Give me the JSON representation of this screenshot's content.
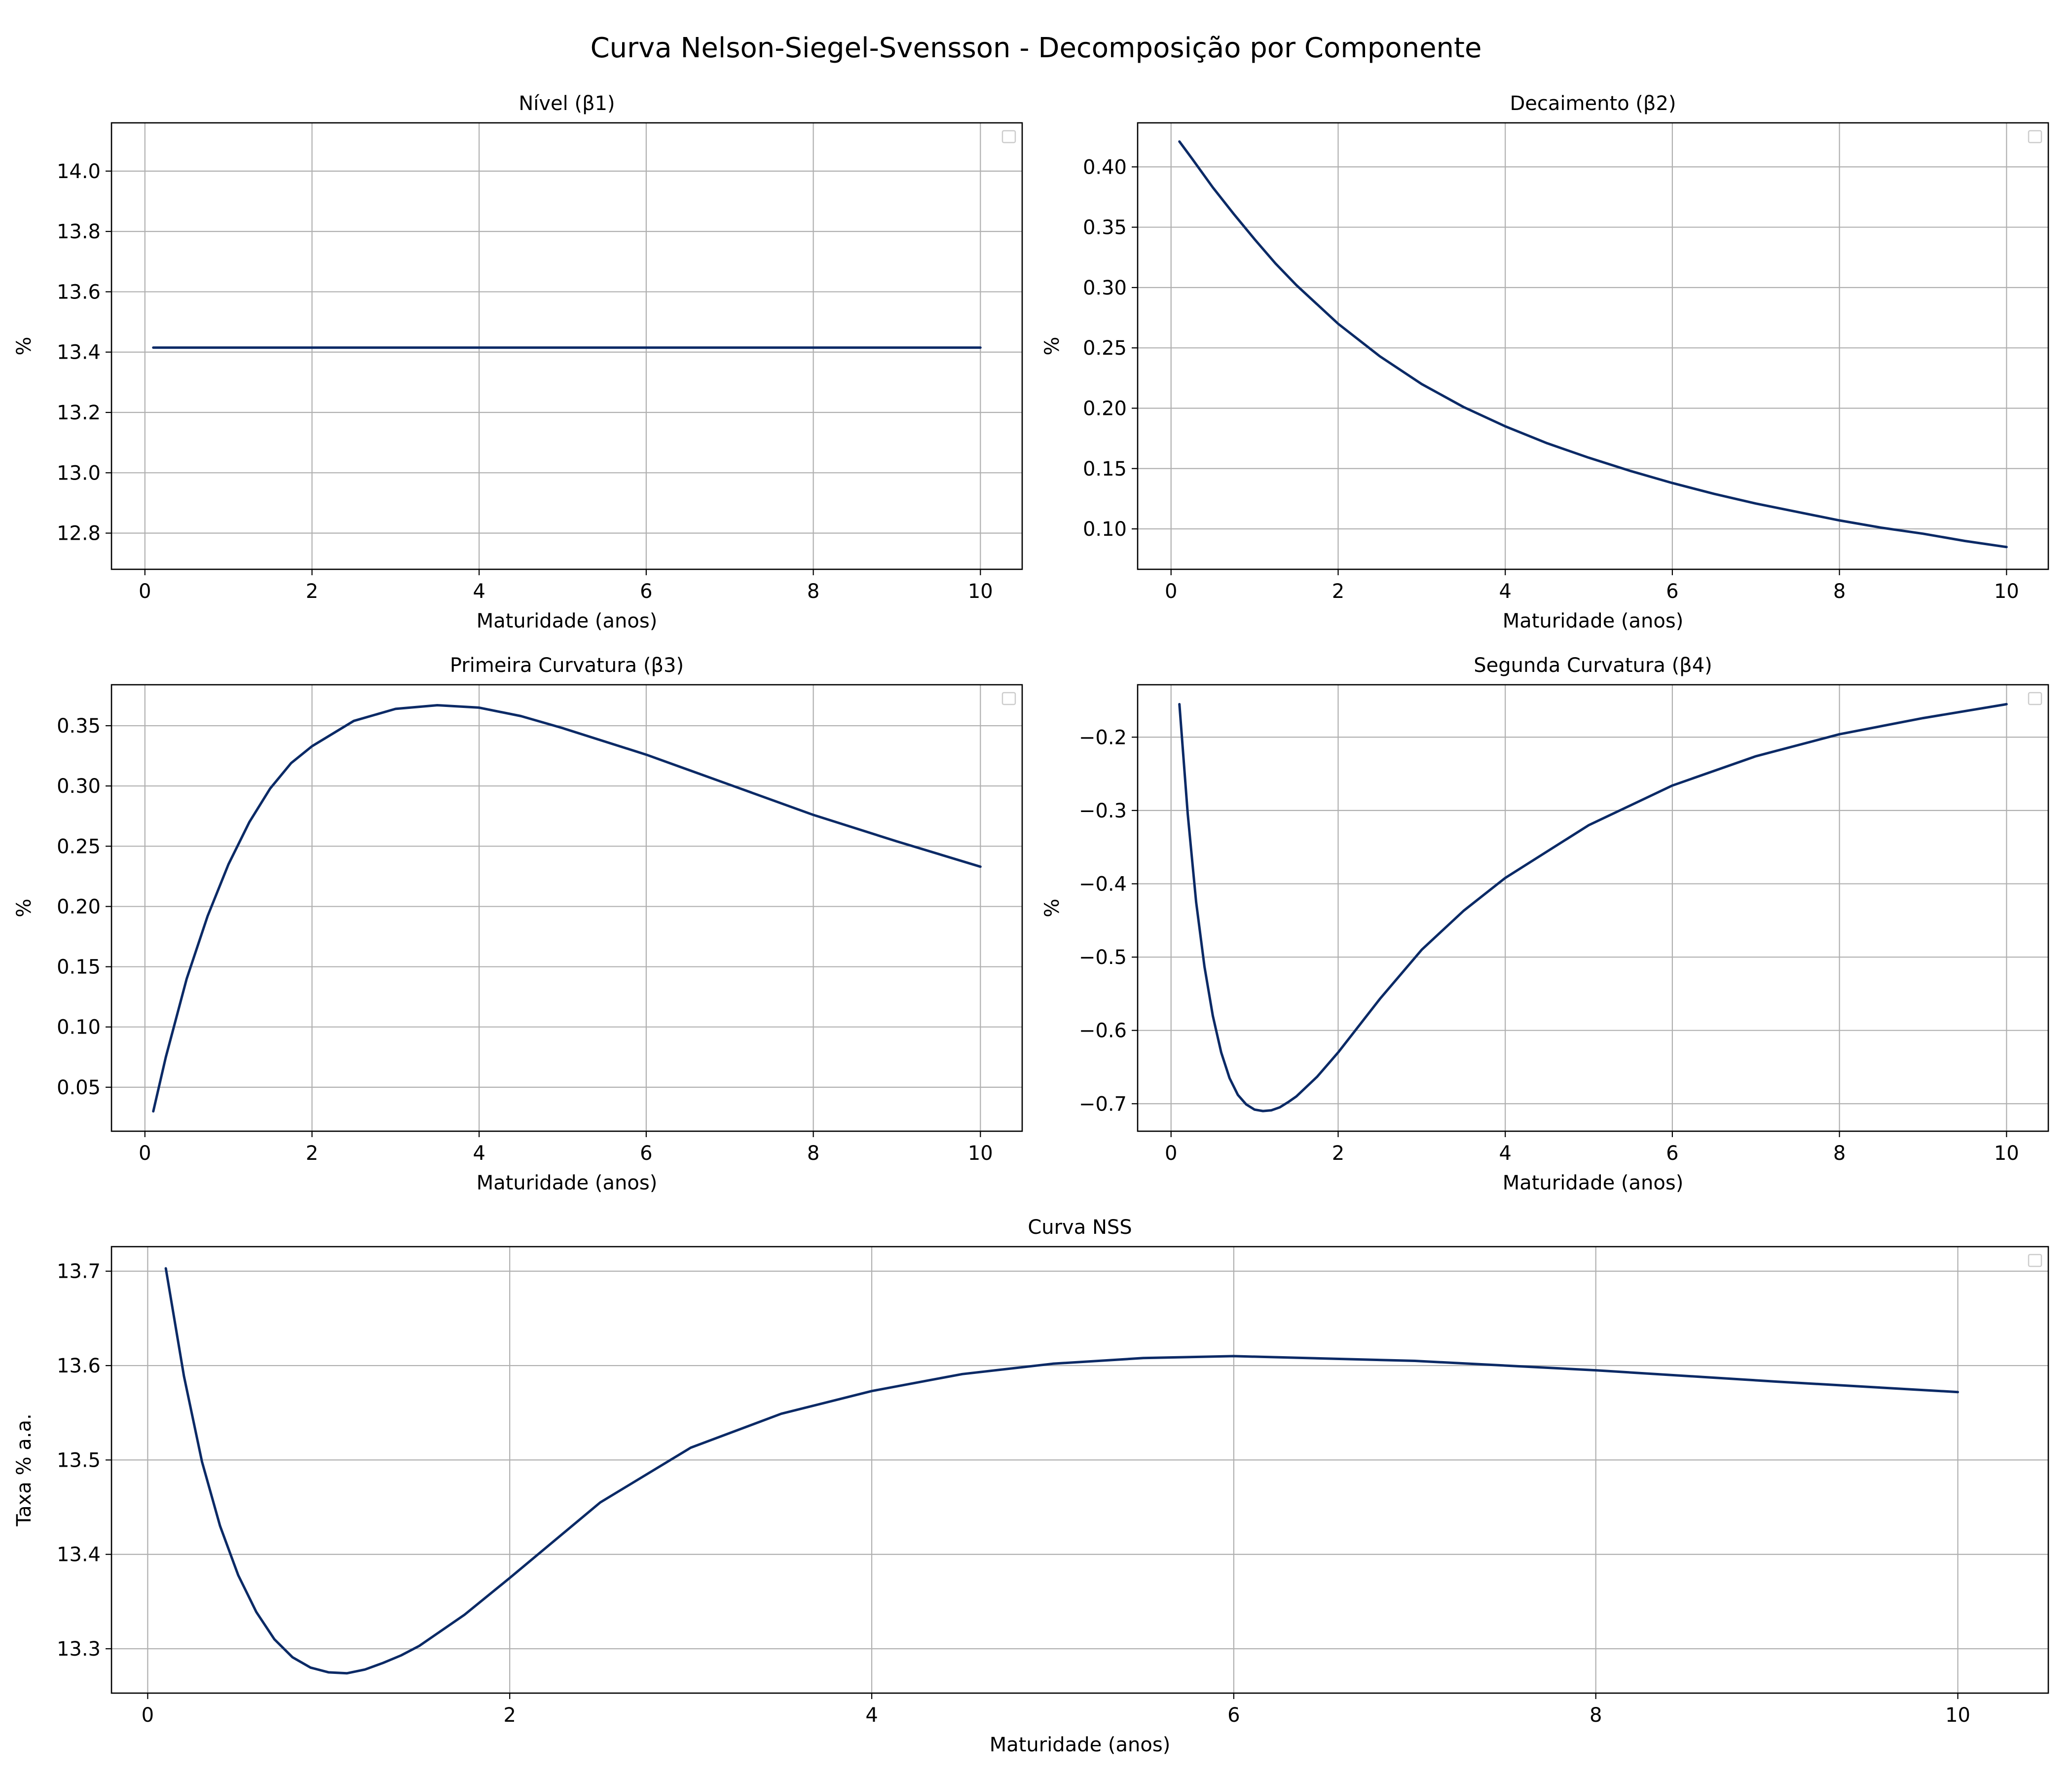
{
  "figure_title": "Curva Nelson-Siegel-Svensson - Decomposição por Componente",
  "line_color": "#0b2a66",
  "chart_data": [
    {
      "type": "line",
      "title": "Nível (β1)",
      "xlabel": "Maturidade (anos)",
      "ylabel": "%",
      "xlim": [
        -0.4,
        10.5
      ],
      "ylim": [
        12.68,
        14.16
      ],
      "xticks": [
        0,
        2,
        4,
        6,
        8,
        10
      ],
      "yticks": [
        12.8,
        13.0,
        13.2,
        13.4,
        13.6,
        13.8,
        14.0
      ],
      "ytick_labels": [
        "12.8",
        "13.0",
        "13.2",
        "13.4",
        "13.6",
        "13.8",
        "14.0"
      ],
      "grid": true,
      "legend": "top-right (empty)",
      "series": [
        {
          "x": [
            0.1,
            2,
            4,
            6,
            8,
            10
          ],
          "y": [
            13.415,
            13.415,
            13.415,
            13.415,
            13.415,
            13.415
          ]
        }
      ]
    },
    {
      "type": "line",
      "title": "Decaimento (β2)",
      "xlabel": "Maturidade (anos)",
      "ylabel": "%",
      "xlim": [
        -0.4,
        10.5
      ],
      "ylim": [
        0.0665,
        0.4365
      ],
      "xticks": [
        0,
        2,
        4,
        6,
        8,
        10
      ],
      "yticks": [
        0.1,
        0.15,
        0.2,
        0.25,
        0.3,
        0.35,
        0.4
      ],
      "ytick_labels": [
        "0.10",
        "0.15",
        "0.20",
        "0.25",
        "0.30",
        "0.35",
        "0.40"
      ],
      "grid": true,
      "legend": "top-right (empty)",
      "series": [
        {
          "x": [
            0.1,
            0.25,
            0.5,
            0.75,
            1,
            1.25,
            1.5,
            1.75,
            2,
            2.5,
            3,
            3.5,
            4,
            4.5,
            5,
            5.5,
            6,
            6.5,
            7,
            7.5,
            8,
            8.5,
            9,
            9.5,
            10
          ],
          "y": [
            0.421,
            0.407,
            0.383,
            0.361,
            0.34,
            0.32,
            0.302,
            0.286,
            0.27,
            0.243,
            0.22,
            0.201,
            0.185,
            0.171,
            0.159,
            0.148,
            0.138,
            0.129,
            0.121,
            0.114,
            0.107,
            0.101,
            0.096,
            0.09,
            0.085
          ]
        }
      ]
    },
    {
      "type": "line",
      "title": "Primeira Curvatura (β3)",
      "xlabel": "Maturidade (anos)",
      "ylabel": "%",
      "xlim": [
        -0.4,
        10.5
      ],
      "ylim": [
        0.0135,
        0.384
      ],
      "xticks": [
        0,
        2,
        4,
        6,
        8,
        10
      ],
      "yticks": [
        0.05,
        0.1,
        0.15,
        0.2,
        0.25,
        0.3,
        0.35
      ],
      "ytick_labels": [
        "0.05",
        "0.10",
        "0.15",
        "0.20",
        "0.25",
        "0.30",
        "0.35"
      ],
      "grid": true,
      "legend": "top-right (empty)",
      "series": [
        {
          "x": [
            0.1,
            0.25,
            0.5,
            0.75,
            1,
            1.25,
            1.5,
            1.75,
            2,
            2.5,
            3,
            3.5,
            4,
            4.5,
            5,
            6,
            7,
            8,
            9,
            10
          ],
          "y": [
            0.03,
            0.075,
            0.14,
            0.192,
            0.235,
            0.27,
            0.298,
            0.319,
            0.333,
            0.354,
            0.364,
            0.367,
            0.365,
            0.358,
            0.348,
            0.326,
            0.301,
            0.276,
            0.254,
            0.233
          ]
        }
      ]
    },
    {
      "type": "line",
      "title": "Segunda Curvatura (β4)",
      "xlabel": "Maturidade (anos)",
      "ylabel": "%",
      "xlim": [
        -0.4,
        10.5
      ],
      "ylim": [
        -0.7375,
        -0.1285
      ],
      "xticks": [
        0,
        2,
        4,
        6,
        8,
        10
      ],
      "yticks": [
        -0.7,
        -0.6,
        -0.5,
        -0.4,
        -0.3,
        -0.2
      ],
      "ytick_labels": [
        "−0.7",
        "−0.6",
        "−0.5",
        "−0.4",
        "−0.3",
        "−0.2"
      ],
      "grid": true,
      "legend": "top-right (empty)",
      "series": [
        {
          "x": [
            0.1,
            0.2,
            0.3,
            0.4,
            0.5,
            0.6,
            0.7,
            0.8,
            0.9,
            1.0,
            1.1,
            1.2,
            1.3,
            1.4,
            1.5,
            1.75,
            2,
            2.5,
            3,
            3.5,
            4,
            5,
            6,
            7,
            8,
            9,
            10
          ],
          "y": [
            -0.155,
            -0.305,
            -0.425,
            -0.513,
            -0.58,
            -0.63,
            -0.665,
            -0.688,
            -0.701,
            -0.708,
            -0.71,
            -0.709,
            -0.705,
            -0.698,
            -0.69,
            -0.663,
            -0.63,
            -0.557,
            -0.49,
            -0.437,
            -0.392,
            -0.32,
            -0.266,
            -0.226,
            -0.196,
            -0.174,
            -0.155
          ]
        }
      ]
    },
    {
      "type": "line",
      "title": "Curva NSS",
      "xlabel": "Maturidade (anos)",
      "ylabel": "Taxa % a.a.",
      "xlim": [
        -0.2,
        10.5
      ],
      "ylim": [
        13.253,
        13.726
      ],
      "xticks": [
        0,
        2,
        4,
        6,
        8,
        10
      ],
      "yticks": [
        13.3,
        13.4,
        13.5,
        13.6,
        13.7
      ],
      "ytick_labels": [
        "13.3",
        "13.4",
        "13.5",
        "13.6",
        "13.7"
      ],
      "grid": true,
      "legend": "top-right (empty)",
      "series": [
        {
          "x": [
            0.1,
            0.2,
            0.3,
            0.4,
            0.5,
            0.6,
            0.7,
            0.8,
            0.9,
            1.0,
            1.1,
            1.2,
            1.3,
            1.4,
            1.5,
            1.75,
            2,
            2.5,
            3,
            3.5,
            4,
            4.5,
            5,
            5.5,
            6,
            7,
            8,
            9,
            10
          ],
          "y": [
            13.703,
            13.589,
            13.498,
            13.43,
            13.378,
            13.339,
            13.31,
            13.291,
            13.28,
            13.275,
            13.274,
            13.278,
            13.285,
            13.293,
            13.303,
            13.336,
            13.375,
            13.455,
            13.513,
            13.549,
            13.573,
            13.591,
            13.602,
            13.608,
            13.61,
            13.605,
            13.595,
            13.583,
            13.572
          ]
        }
      ]
    }
  ]
}
